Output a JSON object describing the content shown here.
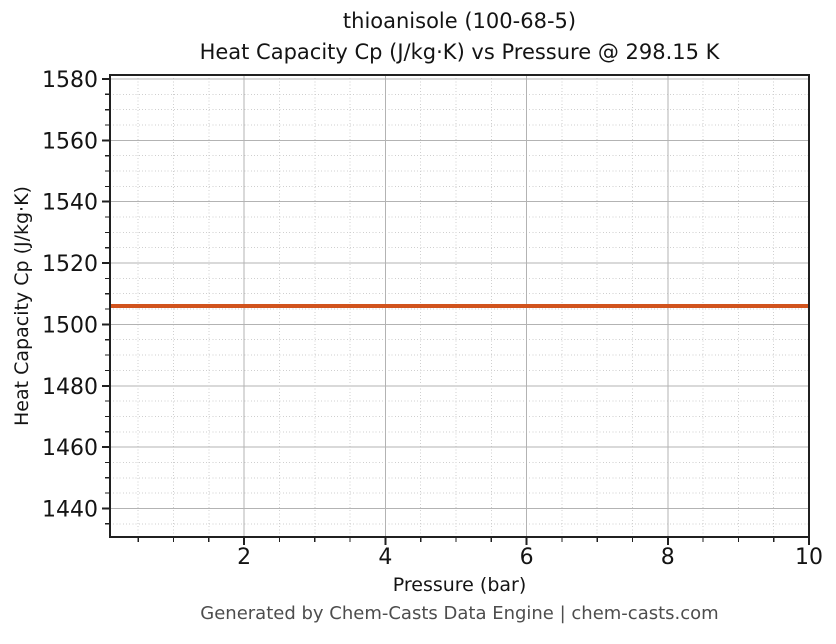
{
  "footer": {
    "text": "Generated by Chem-Casts Data Engine | chem-casts.com"
  },
  "colors": {
    "background": "#ffffff",
    "spine": "#202020",
    "grid_major": "#b3b3b3",
    "grid_minor": "#cfcfcf",
    "tick_label": "#141414",
    "footer_text": "#4d4d4d",
    "line": "#d1531d"
  },
  "chart_data": {
    "type": "line",
    "title": "thioanisole (100-68-5)\nHeat Capacity Cp (J/kg·K) vs Pressure @ 298.15 K",
    "title_line1": "thioanisole (100-68-5)",
    "title_line2": "Heat Capacity Cp (J/kg·K) vs Pressure @ 298.15 K",
    "xlabel": "Pressure (bar)",
    "ylabel": "Heat Capacity Cp (J/kg·K)",
    "xlim": [
      0.1,
      10.0
    ],
    "ylim": [
      1430.7,
      1581.3
    ],
    "x_major_ticks": [
      2,
      4,
      6,
      8,
      10
    ],
    "x_minor_tick_step": 0.5,
    "y_major_ticks": [
      1440,
      1460,
      1480,
      1500,
      1520,
      1540,
      1560,
      1580
    ],
    "y_minor_tick_step": 5,
    "grid": {
      "major_style": "solid",
      "minor_style": "dotted",
      "shown": true
    },
    "legend": "none",
    "series": [
      {
        "name": "Heat Capacity Cp at 298.15 K",
        "x": [
          0.1,
          1.2,
          2.3,
          3.4,
          4.5,
          5.6,
          6.7,
          7.8,
          8.9,
          10.0
        ],
        "y": [
          1506,
          1506,
          1506,
          1506,
          1506,
          1506,
          1506,
          1506,
          1506,
          1506
        ],
        "color": "#d1531d",
        "line_width": 4
      }
    ]
  }
}
